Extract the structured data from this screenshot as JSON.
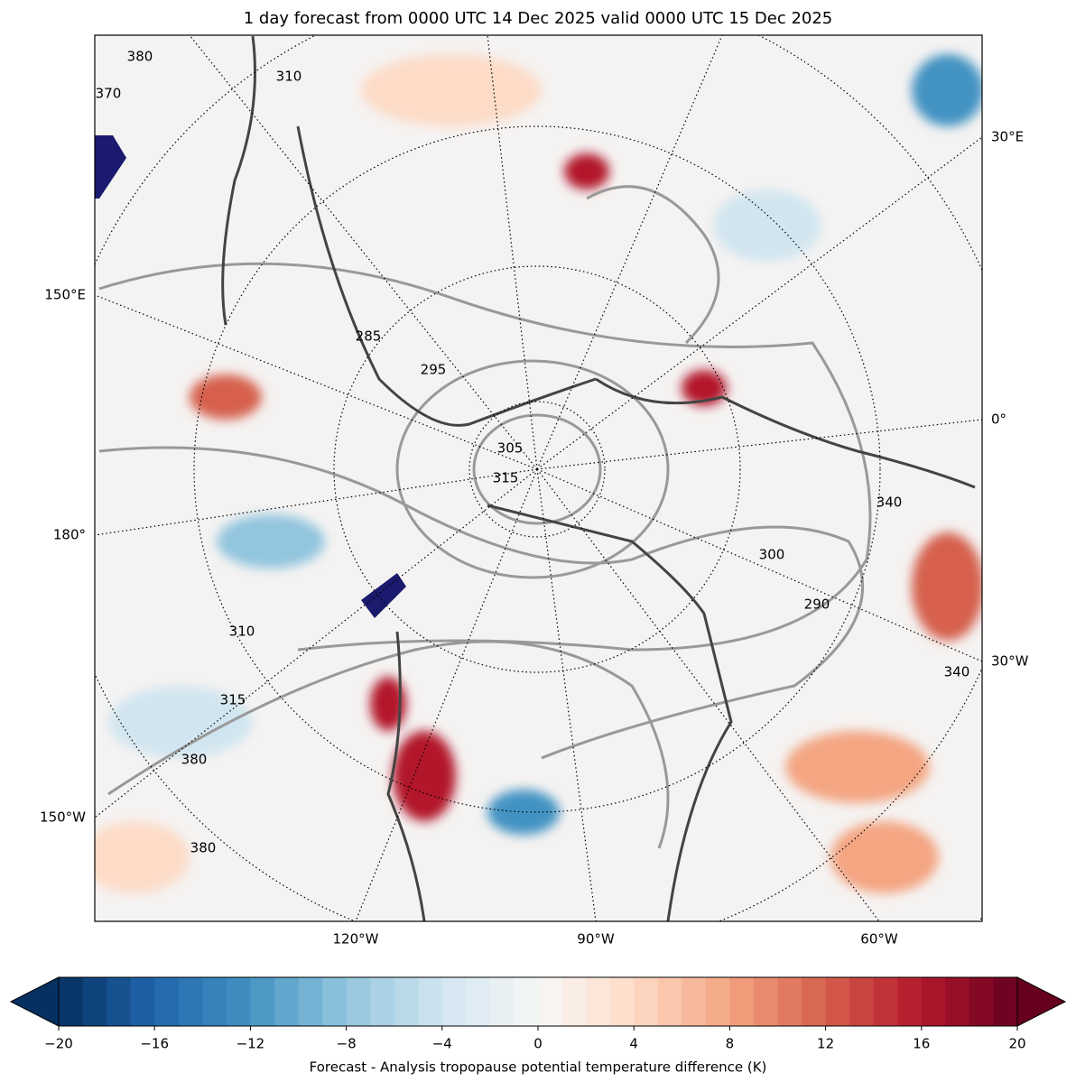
{
  "title": "1 day forecast from 0000 UTC 14 Dec 2025 valid 0000 UTC 15 Dec 2025",
  "map": {
    "lon_labels_right": [
      "30°E",
      "0°",
      "30°W"
    ],
    "lon_labels_left": [
      "150°E",
      "180°",
      "150°W"
    ],
    "lon_labels_bottom": [
      "120°W",
      "90°W",
      "60°W"
    ],
    "contour_labels": [
      "370",
      "380",
      "310",
      "285",
      "295",
      "305",
      "315",
      "340",
      "300",
      "290",
      "380",
      "340",
      "310",
      "315",
      "380"
    ]
  },
  "colorbar": {
    "label": "Forecast - Analysis tropopause potential temperature difference (K)",
    "lim": [
      -20,
      20
    ],
    "n_levels": 40,
    "colors": [
      "#053061",
      "#2166ac",
      "#4393c3",
      "#92c5de",
      "#d1e5f0",
      "#f7f7f7",
      "#fddbc7",
      "#f4a582",
      "#d6604d",
      "#b2182b",
      "#67001f"
    ],
    "ticks": [
      {
        "value": -20,
        "label": "−20"
      },
      {
        "value": -16,
        "label": "−16"
      },
      {
        "value": -12,
        "label": "−12"
      },
      {
        "value": -8,
        "label": "−8"
      },
      {
        "value": -4,
        "label": "−4"
      },
      0,
      4,
      8,
      12,
      16,
      20
    ]
  }
}
